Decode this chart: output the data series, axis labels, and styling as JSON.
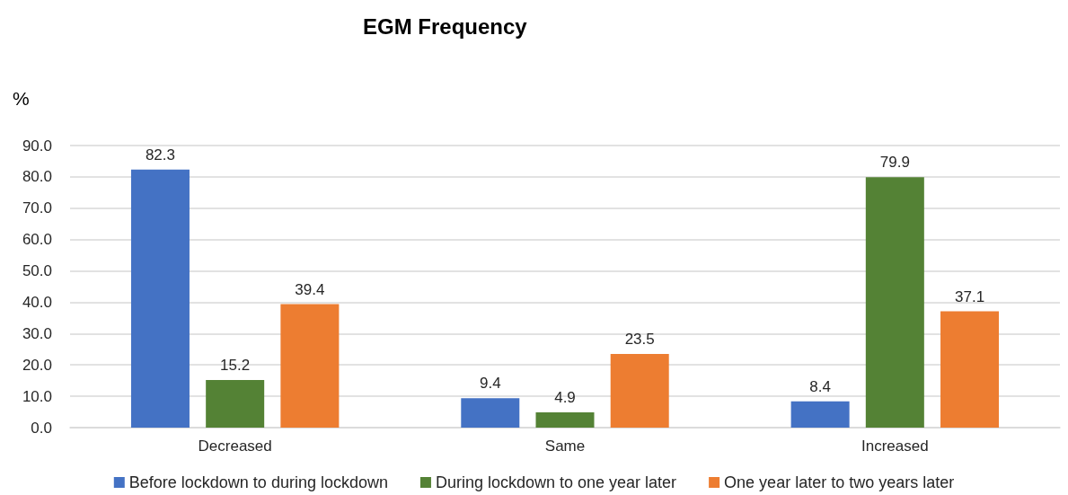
{
  "chart_data": {
    "type": "bar",
    "title": "EGM Frequency",
    "ylabel": "%",
    "categories": [
      "Decreased",
      "Same",
      "Increased"
    ],
    "series": [
      {
        "name": "Before lockdown to during lockdown",
        "color": "#4472c4",
        "values": [
          82.3,
          9.4,
          8.4
        ]
      },
      {
        "name": "During lockdown to one year later",
        "color": "#548235",
        "values": [
          15.2,
          4.9,
          79.9
        ]
      },
      {
        "name": "One year later to two years later",
        "color": "#ed7d31",
        "values": [
          39.4,
          23.5,
          37.1
        ]
      }
    ],
    "ylim": [
      0,
      90
    ],
    "yticks": [
      {
        "value": 0,
        "label": "0.0"
      },
      {
        "value": 10,
        "label": "10.0"
      },
      {
        "value": 20,
        "label": "20.0"
      },
      {
        "value": 30,
        "label": "30.0"
      },
      {
        "value": 40,
        "label": "40.0"
      },
      {
        "value": 50,
        "label": "50.0"
      },
      {
        "value": 60,
        "label": "60.0"
      },
      {
        "value": 70,
        "label": "70.0"
      },
      {
        "value": 80,
        "label": "80.0"
      },
      {
        "value": 90,
        "label": "90.0"
      }
    ],
    "grid": "y",
    "legend": "bottom",
    "data_labels": true
  }
}
